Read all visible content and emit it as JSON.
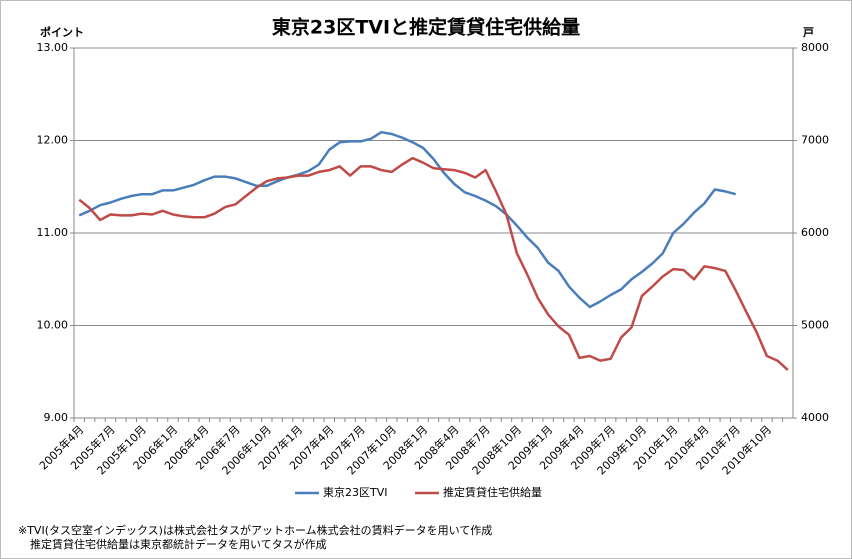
{
  "chart_data": {
    "type": "line",
    "title": "東京23区TVIと推定賃貸住宅供給量",
    "y_label": "ポイント",
    "y2_label": "戸",
    "notes": [
      "※TVI(タス空室インデックス)は株式会社タスがアットホーム株式会社の賃料データを用いて作成",
      "推定賃貸住宅供給量は東京都統計データを用いてタスが作成"
    ],
    "categories": [
      "2005年4月",
      null,
      null,
      "2005年7月",
      null,
      null,
      "2005年10月",
      null,
      null,
      "2006年1月",
      null,
      null,
      "2006年4月",
      null,
      null,
      "2006年7月",
      null,
      null,
      "2006年10月",
      null,
      null,
      "2007年1月",
      null,
      null,
      "2007年4月",
      null,
      null,
      "2007年7月",
      null,
      null,
      "2007年10月",
      null,
      null,
      "2008年1月",
      null,
      null,
      "2008年4月",
      null,
      null,
      "2008年7月",
      null,
      null,
      "2008年10月",
      null,
      null,
      "2009年1月",
      null,
      null,
      "2009年4月",
      null,
      null,
      "2009年7月",
      null,
      null,
      "2009年10月",
      null,
      null,
      "2010年1月",
      null,
      null,
      "2010年4月",
      null,
      null,
      "2010年7月",
      null,
      null,
      "2010年10月",
      null,
      null
    ],
    "series": [
      {
        "name": "東京23区TVI",
        "color": "#4a7ebb",
        "values": [
          11.19,
          11.24,
          11.3,
          11.33,
          11.37,
          11.4,
          11.42,
          11.42,
          11.46,
          11.46,
          11.49,
          11.52,
          11.57,
          11.61,
          11.61,
          11.59,
          11.55,
          11.51,
          11.51,
          11.56,
          11.6,
          11.63,
          11.67,
          11.74,
          11.9,
          11.98,
          11.99,
          11.99,
          12.02,
          12.09,
          12.07,
          12.03,
          11.98,
          11.92,
          11.8,
          11.65,
          11.53,
          11.44,
          11.4,
          11.35,
          11.29,
          11.2,
          11.08,
          10.95,
          10.84,
          10.68,
          10.59,
          10.42,
          10.3,
          10.2,
          10.26,
          10.33,
          10.39,
          10.5,
          10.58,
          10.67,
          10.78,
          11.0,
          11.1,
          11.22,
          11.32,
          11.47,
          11.45,
          11.42,
          null,
          null,
          null,
          null,
          null
        ]
      },
      {
        "name": "推定賃貸住宅供給量",
        "color": "#be4b48",
        "axis": "y2",
        "values": [
          6360,
          6270,
          6140,
          6200,
          6190,
          6190,
          6210,
          6200,
          6240,
          6200,
          6180,
          6170,
          6170,
          6210,
          6280,
          6310,
          6400,
          6490,
          6560,
          6590,
          6600,
          6620,
          6620,
          6660,
          6680,
          6720,
          6620,
          6720,
          6720,
          6680,
          6660,
          6740,
          6810,
          6760,
          6700,
          6690,
          6680,
          6650,
          6600,
          6680,
          6450,
          6200,
          5780,
          5550,
          5300,
          5120,
          4990,
          4900,
          4650,
          4670,
          4620,
          4640,
          4870,
          4980,
          5320,
          5420,
          5530,
          5610,
          5600,
          5500,
          5640,
          5620,
          5590,
          5380,
          5150,
          4930,
          4670,
          4620,
          4520
        ]
      }
    ],
    "ylim": [
      9,
      13
    ],
    "yticks": [
      {
        "value": 9,
        "label": "9.00"
      },
      {
        "value": 10,
        "label": "10.00"
      },
      {
        "value": 11,
        "label": "11.00"
      },
      {
        "value": 12,
        "label": "12.00"
      },
      {
        "value": 13,
        "label": "13.00"
      }
    ],
    "y2lim": [
      4000,
      8000
    ],
    "y2ticks": [
      4000,
      5000,
      6000,
      7000,
      8000
    ],
    "grid": true,
    "legend": "bottom"
  }
}
